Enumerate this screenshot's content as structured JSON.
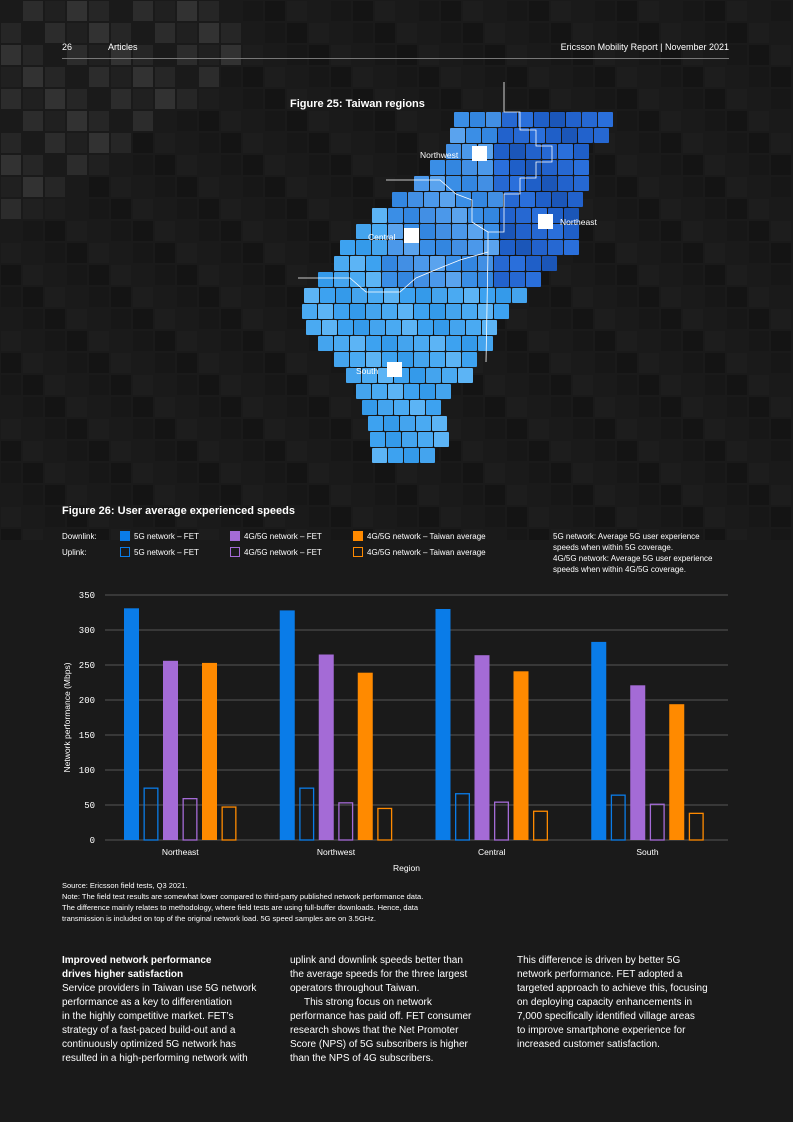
{
  "header": {
    "page_number": "26",
    "section": "Articles",
    "report": "Ericsson Mobility Report  |  November 2021"
  },
  "figure25": {
    "title": "Figure 25: Taiwan regions",
    "regions": [
      "Northwest",
      "Northeast",
      "Central",
      "South"
    ]
  },
  "figure26": {
    "title": "Figure 26: User average experienced speeds"
  },
  "legend": {
    "downlink_label": "Downlink:",
    "uplink_label": "Uplink:",
    "items": [
      "5G network – FET",
      "4G/5G network – FET",
      "4G/5G network – Taiwan average"
    ],
    "colors": [
      "#0a7ce8",
      "#a46bd6",
      "#ff8a00"
    ],
    "notes": [
      "5G network: Average 5G user experience",
      "speeds when within 5G coverage.",
      "4G/5G network: Average 5G user experience",
      "speeds when within 4G/5G coverage."
    ]
  },
  "chart_data": {
    "type": "bar",
    "title": "Figure 26: User average experienced speeds",
    "xlabel": "Region",
    "ylabel": "Network performance (Mbps)",
    "ylim": [
      0,
      350
    ],
    "yticks": [
      0,
      50,
      100,
      150,
      200,
      250,
      300,
      350
    ],
    "categories": [
      "Northeast",
      "Northwest",
      "Central",
      "South"
    ],
    "series": [
      {
        "name": "Downlink 5G network – FET",
        "style": "filled",
        "color": "#0a7ce8",
        "values": [
          331,
          328,
          330,
          283
        ]
      },
      {
        "name": "Uplink 5G network – FET",
        "style": "outline",
        "color": "#0a7ce8",
        "values": [
          75,
          75,
          67,
          65
        ]
      },
      {
        "name": "Downlink 4G/5G network – FET",
        "style": "filled",
        "color": "#a46bd6",
        "values": [
          256,
          265,
          264,
          221
        ]
      },
      {
        "name": "Uplink 4G/5G network – FET",
        "style": "outline",
        "color": "#a46bd6",
        "values": [
          60,
          54,
          55,
          52
        ]
      },
      {
        "name": "Downlink 4G/5G network – Taiwan average",
        "style": "filled",
        "color": "#ff8a00",
        "values": [
          253,
          239,
          241,
          194
        ]
      },
      {
        "name": "Uplink 4G/5G network – Taiwan average",
        "style": "outline",
        "color": "#ff8a00",
        "values": [
          48,
          46,
          42,
          39
        ]
      }
    ]
  },
  "source": {
    "lines": [
      "Source: Ericsson field tests, Q3 2021.",
      "Note: The field test results are somewhat lower compared to third-party published network performance data.",
      "The difference mainly relates to methodology, where field tests are using full-buffer downloads. Hence, data",
      "transmission is included on top of the original network load. 5G speed samples are on 3.5GHz."
    ]
  },
  "article": {
    "heading_lines": [
      "Improved network performance",
      "drives higher satisfaction"
    ],
    "col1": [
      "Service providers in Taiwan use 5G network",
      "performance as a key to differentiation",
      "in the highly competitive market. FET’s",
      "strategy of a fast-paced build-out and a",
      "continuously optimized 5G network has",
      "resulted in a high-performing network with"
    ],
    "col2a": [
      "uplink and downlink speeds better than",
      "the average speeds for the three largest",
      "operators throughout Taiwan."
    ],
    "col2b": [
      "This strong focus on network",
      "performance has paid off. FET consumer",
      "research shows that the Net Promoter",
      "Score (NPS) of 5G subscribers is higher",
      "than the NPS of 4G subscribers."
    ],
    "col3": [
      "This difference is driven by better 5G",
      "network performance. FET adopted a",
      "targeted approach to achieve this, focusing",
      "on deploying capacity enhancements in",
      "7,000 specifically identified village areas",
      "to improve smartphone experience for",
      "increased customer satisfaction."
    ]
  }
}
